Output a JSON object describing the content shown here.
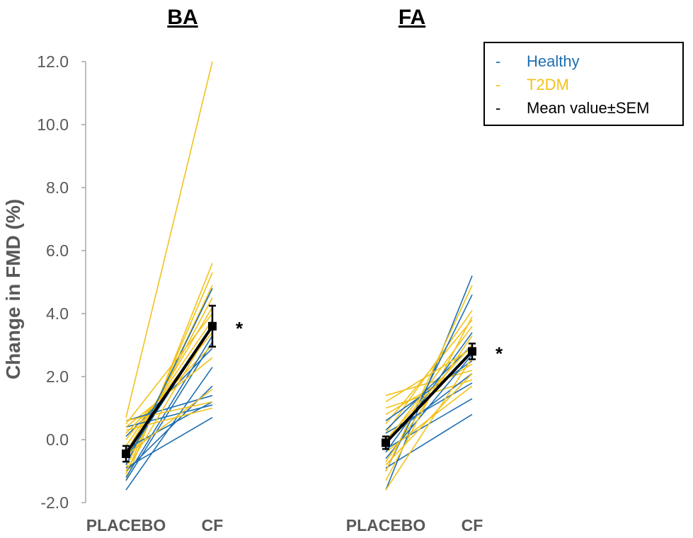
{
  "chart_data": {
    "type": "line",
    "ylabel": "Change in FMD (%)",
    "ylim": [
      -2,
      12
    ],
    "yticks": [
      "-2.0",
      "0.0",
      "2.0",
      "4.0",
      "6.0",
      "8.0",
      "10.0",
      "12.0"
    ],
    "colors": {
      "healthy": "#1f6fb2",
      "t2dm": "#f2c21a",
      "mean": "#000000"
    },
    "legend": {
      "position": "top-right",
      "entries": [
        {
          "key": "healthy",
          "marker": "-",
          "label": "Healthy"
        },
        {
          "key": "t2dm",
          "marker": "-",
          "label": "T2DM"
        },
        {
          "key": "mean",
          "marker": "-",
          "label": "Mean value±SEM"
        }
      ]
    },
    "panels": [
      {
        "title": "BA",
        "categories": [
          "PLACEBO",
          "CF"
        ],
        "significance": "*",
        "healthy": [
          [
            -1.6,
            2.3
          ],
          [
            -1.3,
            3.1
          ],
          [
            -1.0,
            1.7
          ],
          [
            -0.9,
            0.7
          ],
          [
            -0.6,
            3.6
          ],
          [
            -0.3,
            1.2
          ],
          [
            0.1,
            2.9
          ],
          [
            0.4,
            1.1
          ],
          [
            -1.2,
            3.3
          ],
          [
            0.6,
            1.4
          ],
          [
            -0.8,
            4.8
          ]
        ],
        "t2dm": [
          [
            0.7,
            12.0
          ],
          [
            -1.3,
            5.6
          ],
          [
            -1.1,
            5.3
          ],
          [
            -0.9,
            4.9
          ],
          [
            -0.6,
            4.5
          ],
          [
            -0.4,
            4.2
          ],
          [
            -0.2,
            3.8
          ],
          [
            0.0,
            3.4
          ],
          [
            0.2,
            3.0
          ],
          [
            0.4,
            2.6
          ],
          [
            0.6,
            1.2
          ],
          [
            -0.5,
            1.6
          ],
          [
            0.3,
            1.0
          ],
          [
            -1.0,
            3.6
          ],
          [
            0.5,
            4.0
          ]
        ],
        "mean": [
          -0.45,
          3.6
        ],
        "sem": [
          0.25,
          0.65
        ]
      },
      {
        "title": "FA",
        "categories": [
          "PLACEBO",
          "CF"
        ],
        "significance": "*",
        "healthy": [
          [
            -1.6,
            5.2
          ],
          [
            -0.9,
            0.8
          ],
          [
            -0.6,
            2.7
          ],
          [
            -0.3,
            1.3
          ],
          [
            0.0,
            2.1
          ],
          [
            0.3,
            3.0
          ],
          [
            0.6,
            2.5
          ],
          [
            -1.0,
            4.6
          ],
          [
            0.2,
            1.8
          ],
          [
            -0.4,
            3.4
          ]
        ],
        "t2dm": [
          [
            1.4,
            2.2
          ],
          [
            1.0,
            1.9
          ],
          [
            0.8,
            2.4
          ],
          [
            0.5,
            3.8
          ],
          [
            0.2,
            4.1
          ],
          [
            -0.1,
            3.6
          ],
          [
            -0.4,
            1.7
          ],
          [
            -0.7,
            3.3
          ],
          [
            -1.0,
            4.9
          ],
          [
            -1.3,
            3.9
          ],
          [
            -1.6,
            2.6
          ],
          [
            1.2,
            2.9
          ],
          [
            0.0,
            3.0
          ],
          [
            -0.8,
            2.1
          ]
        ],
        "mean": [
          -0.1,
          2.8
        ],
        "sem": [
          0.2,
          0.25
        ]
      }
    ]
  }
}
